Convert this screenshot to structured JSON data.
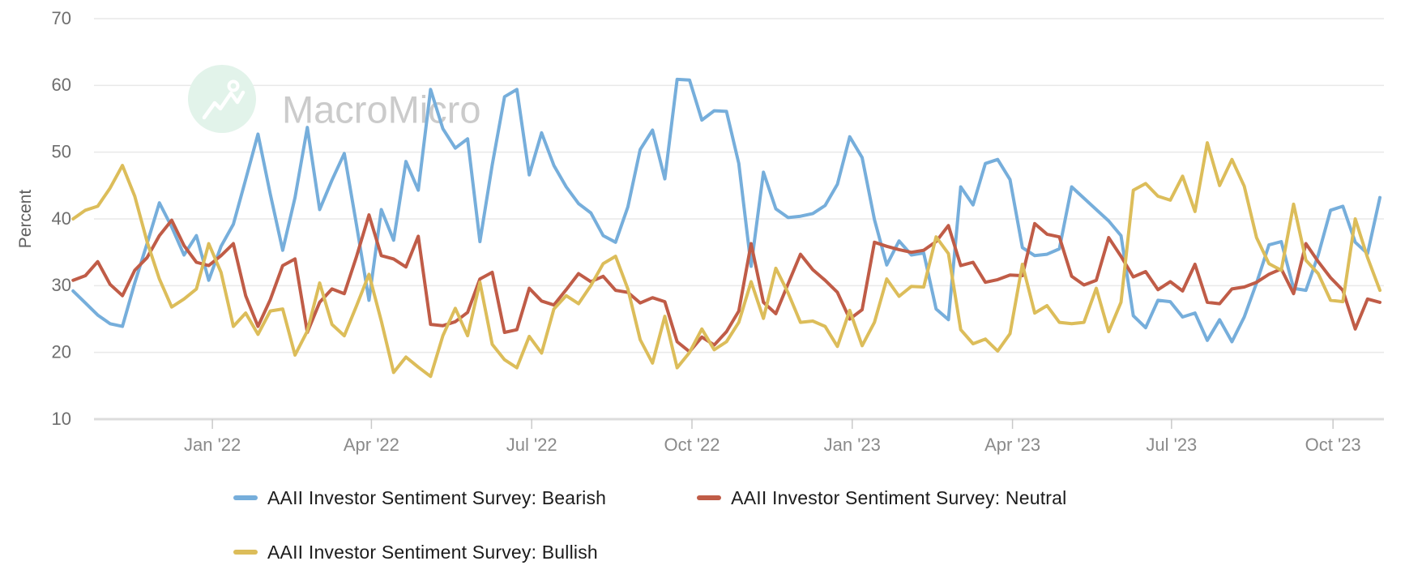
{
  "watermark": {
    "text": "MacroMicro"
  },
  "y_axis": {
    "label": "Percent"
  },
  "legend": {
    "items": [
      {
        "label": "AAII Investor Sentiment Survey: Bearish"
      },
      {
        "label": "AAII Investor Sentiment Survey: Neutral"
      },
      {
        "label": "AAII Investor Sentiment Survey: Bullish"
      }
    ]
  },
  "chart_data": {
    "type": "line",
    "title": "",
    "xlabel": "",
    "ylabel": "Percent",
    "ylim": [
      10,
      70
    ],
    "yticks": [
      70,
      60,
      50,
      40,
      30,
      20,
      10
    ],
    "grid": "horizontal",
    "legend_position": "bottom-left",
    "x_ticks": [
      {
        "label": "Jan '22",
        "pos": 11.3
      },
      {
        "label": "Apr '22",
        "pos": 24.2
      },
      {
        "label": "Jul '22",
        "pos": 37.2
      },
      {
        "label": "Oct '22",
        "pos": 50.2
      },
      {
        "label": "Jan '23",
        "pos": 63.2
      },
      {
        "label": "Apr '23",
        "pos": 76.2
      },
      {
        "label": "Jul '23",
        "pos": 89.1
      },
      {
        "label": "Oct '23",
        "pos": 102.2
      }
    ],
    "series": [
      {
        "name": "AAII Investor Sentiment Survey: Bearish",
        "color": "#76aedb",
        "values": [
          29.2,
          27.4,
          25.6,
          24.3,
          23.9,
          30.4,
          36.3,
          42.4,
          38.8,
          34.6,
          37.5,
          30.8,
          35.9,
          39.2,
          45.9,
          52.7,
          43.7,
          35.3,
          43.2,
          53.7,
          41.4,
          45.8,
          49.8,
          39.0,
          27.8,
          41.4,
          36.8,
          48.6,
          44.3,
          59.4,
          53.5,
          50.6,
          52.0,
          36.6,
          48.1,
          58.3,
          59.4,
          46.6,
          52.9,
          48.0,
          44.8,
          42.3,
          40.9,
          37.5,
          36.5,
          41.8,
          50.4,
          53.3,
          46.0,
          60.9,
          60.8,
          54.8,
          56.2,
          56.1,
          48.3,
          32.9,
          47.0,
          41.5,
          40.2,
          40.4,
          40.8,
          42.0,
          45.2,
          52.3,
          49.2,
          39.9,
          33.1,
          36.7,
          34.6,
          34.9,
          26.5,
          24.9,
          44.8,
          42.1,
          48.3,
          48.9,
          45.9,
          35.7,
          34.5,
          34.7,
          35.5,
          44.8,
          43.1,
          41.4,
          39.7,
          37.5,
          25.5,
          23.7,
          27.8,
          27.6,
          25.3,
          25.9,
          21.8,
          24.9,
          21.6,
          25.3,
          30.4,
          36.1,
          36.6,
          29.6,
          29.3,
          34.6,
          41.3,
          41.9,
          36.5,
          34.8,
          43.2
        ]
      },
      {
        "name": "AAII Investor Sentiment Survey: Neutral",
        "color": "#c05c47",
        "values": [
          30.8,
          31.5,
          33.6,
          30.2,
          28.5,
          32.3,
          34.2,
          37.5,
          39.8,
          36.0,
          33.5,
          33.0,
          34.5,
          36.3,
          28.5,
          23.9,
          27.9,
          33.0,
          34.0,
          23.0,
          27.5,
          29.5,
          28.8,
          34.4,
          40.6,
          34.5,
          34.0,
          32.8,
          37.4,
          24.2,
          24.0,
          24.6,
          26.0,
          31.0,
          32.0,
          23.0,
          23.4,
          29.6,
          27.7,
          27.1,
          29.4,
          31.8,
          30.6,
          31.4,
          29.3,
          29.0,
          27.4,
          28.2,
          27.6,
          21.6,
          20.1,
          22.3,
          21.1,
          23.1,
          26.2,
          36.3,
          27.5,
          25.8,
          30.3,
          34.7,
          32.4,
          30.8,
          29.0,
          25.0,
          26.4,
          36.5,
          35.9,
          35.4,
          35.0,
          35.3,
          36.6,
          39.0,
          33.0,
          33.5,
          30.5,
          30.9,
          31.6,
          31.5,
          39.3,
          37.7,
          37.3,
          31.4,
          30.1,
          30.8,
          37.2,
          34.4,
          31.3,
          32.1,
          29.4,
          30.6,
          29.2,
          33.2,
          27.5,
          27.3,
          29.5,
          29.8,
          30.5,
          31.7,
          32.5,
          28.8,
          36.3,
          33.6,
          31.2,
          29.3,
          23.5,
          28.0,
          27.5
        ]
      },
      {
        "name": "AAII Investor Sentiment Survey: Bullish",
        "color": "#dcbd5a",
        "values": [
          40.0,
          41.3,
          41.9,
          44.6,
          48.0,
          43.4,
          36.6,
          31.0,
          26.8,
          28.0,
          29.5,
          36.3,
          32.0,
          23.9,
          25.9,
          22.7,
          26.2,
          26.5,
          19.6,
          23.2,
          30.4,
          24.2,
          22.5,
          27.0,
          31.7,
          24.7,
          17.0,
          19.3,
          17.8,
          16.4,
          22.5,
          26.6,
          22.5,
          30.5,
          21.2,
          18.9,
          17.7,
          22.4,
          19.9,
          26.5,
          28.5,
          27.3,
          30.0,
          33.3,
          34.4,
          29.5,
          21.9,
          18.4,
          25.4,
          17.7,
          20.0,
          23.5,
          20.4,
          21.6,
          24.5,
          30.6,
          25.1,
          32.6,
          28.9,
          24.5,
          24.7,
          23.9,
          20.9,
          26.3,
          21.0,
          24.5,
          31.0,
          28.4,
          29.9,
          29.8,
          37.3,
          34.8,
          23.4,
          21.3,
          22.0,
          20.2,
          22.8,
          33.2,
          25.9,
          27.0,
          24.5,
          24.3,
          24.5,
          29.6,
          23.1,
          27.5,
          44.3,
          45.3,
          43.4,
          42.8,
          46.4,
          41.1,
          51.4,
          45.0,
          48.9,
          44.9,
          37.2,
          33.3,
          32.3,
          42.2,
          33.8,
          31.8,
          27.8,
          27.6,
          40.0,
          34.2,
          29.3
        ]
      }
    ]
  }
}
